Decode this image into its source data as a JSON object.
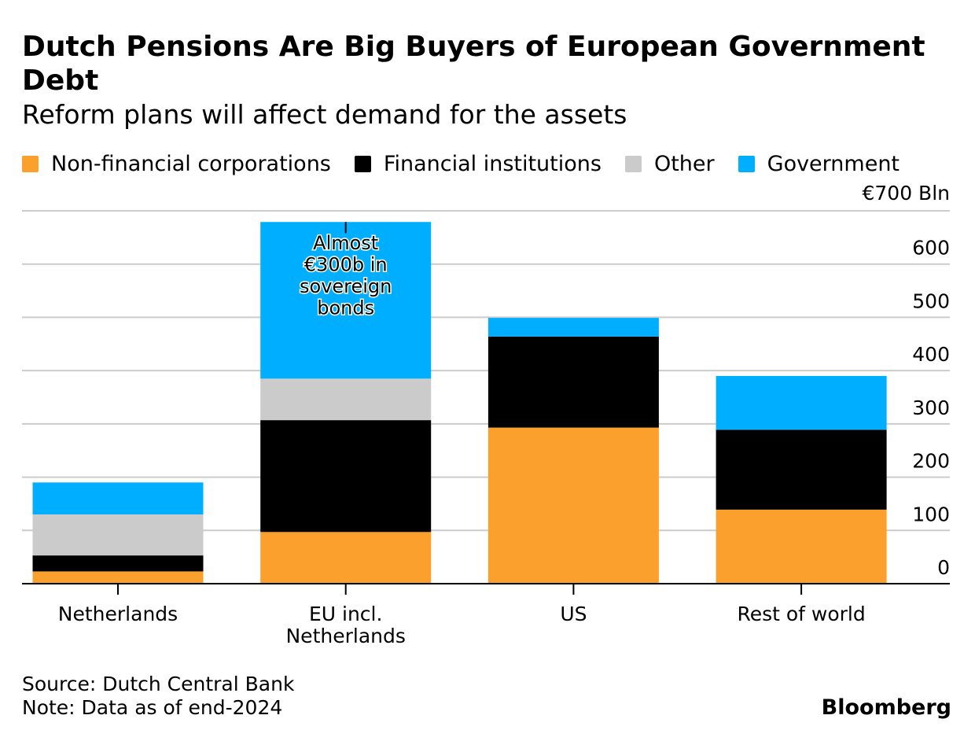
{
  "title": "Dutch Pensions Are Big Buyers of European Government Debt",
  "subtitle": "Reform plans will affect demand for the assets",
  "legend": [
    {
      "label": "Non-financial corporations",
      "color": "#FBA02C"
    },
    {
      "label": "Financial institutions",
      "color": "#000000"
    },
    {
      "label": "Other",
      "color": "#CBCBCB"
    },
    {
      "label": "Government",
      "color": "#00AEFF"
    }
  ],
  "chart_data": {
    "type": "bar",
    "stacked": true,
    "categories": [
      "Netherlands",
      "EU incl.\nNetherlands",
      "US",
      "Rest of world"
    ],
    "series": [
      {
        "name": "Non-financial corporations",
        "color": "#FBA02C",
        "values": [
          23,
          97,
          293,
          139
        ]
      },
      {
        "name": "Financial institutions",
        "color": "#000000",
        "values": [
          30,
          210,
          171,
          150
        ]
      },
      {
        "name": "Other",
        "color": "#CBCBCB",
        "values": [
          77,
          78,
          0,
          0
        ]
      },
      {
        "name": "Government",
        "color": "#00AEFF",
        "values": [
          60,
          294,
          35,
          101
        ]
      }
    ],
    "ylim": [
      0,
      700
    ],
    "yticks": [
      0,
      100,
      200,
      300,
      400,
      500,
      600,
      700
    ],
    "ytick_labels": [
      "0",
      "100",
      "200",
      "300",
      "400",
      "500",
      "600",
      "€700 Bln"
    ],
    "yaxis_position": "right",
    "grid": true,
    "annotation": {
      "category_index": 1,
      "text": "Almost\n€300b in\nsovereign\nbonds"
    }
  },
  "footer": {
    "source": "Source: Dutch Central Bank",
    "note": "Note: Data as of end-2024",
    "brand": "Bloomberg"
  }
}
